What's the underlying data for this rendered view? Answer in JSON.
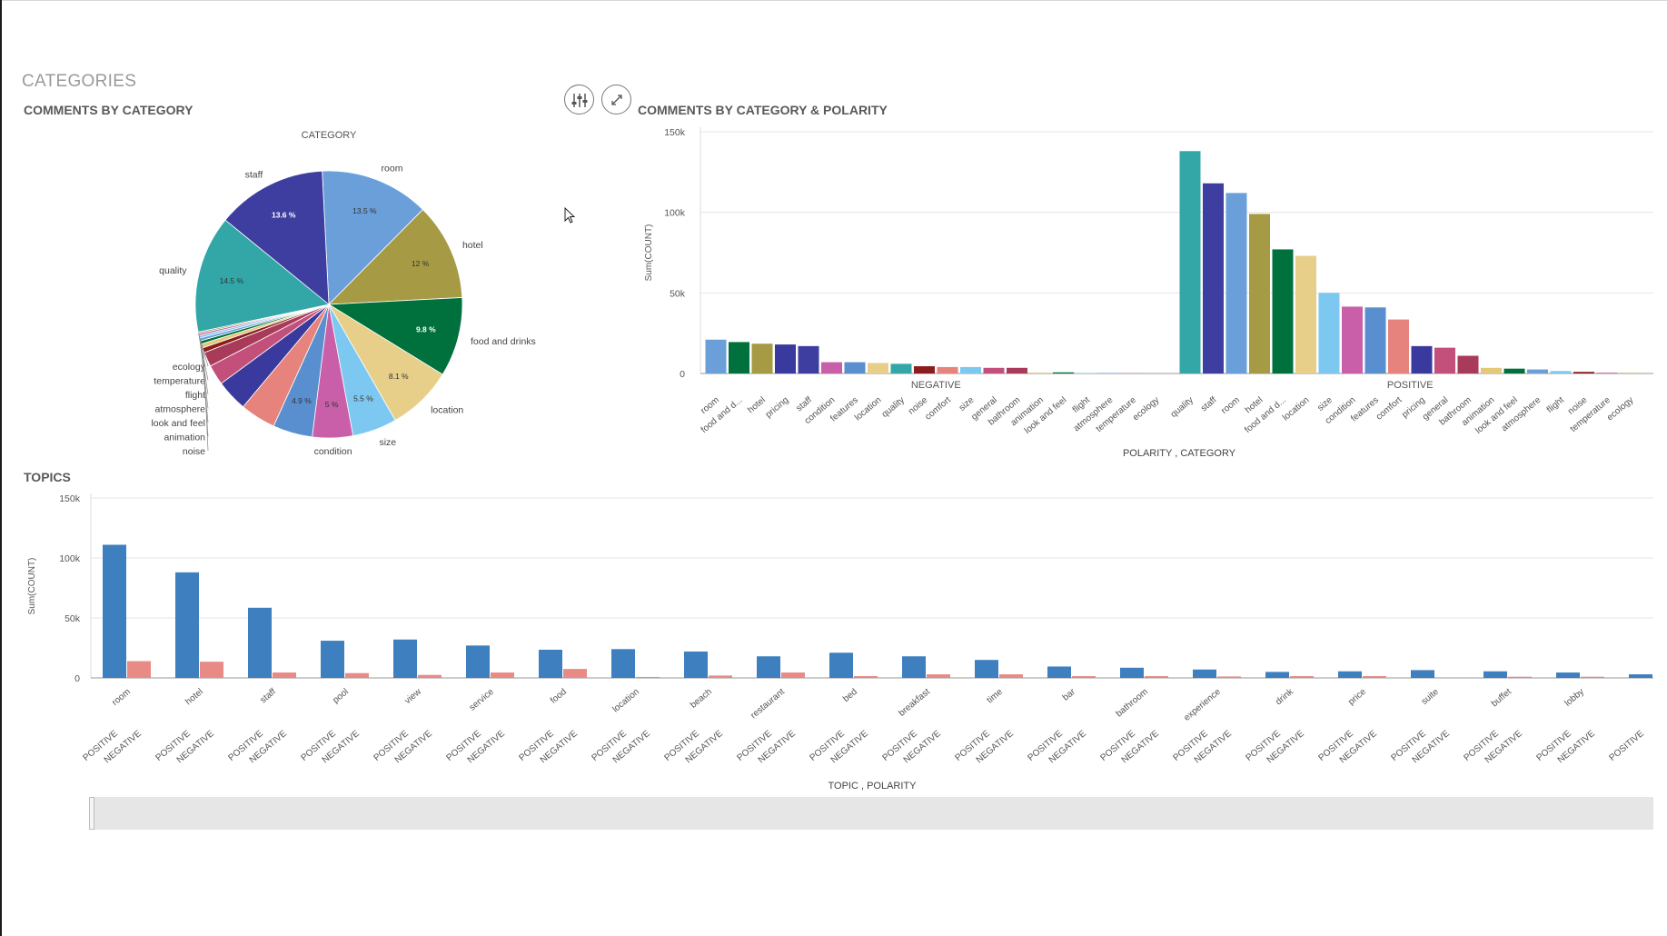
{
  "sheet_title": "CATEGORIES",
  "panels": {
    "pie_title": "COMMENTS BY CATEGORY",
    "bar_title": "COMMENTS BY CATEGORY & POLARITY",
    "topics_title": "TOPICS"
  },
  "toolbar": {
    "adjust_icon": "sliders-icon",
    "expand_icon": "expand-icon"
  },
  "colors": {
    "teal": "#33A7A7",
    "indigo": "#3E3EA0",
    "sky": "#6A9FD9",
    "olive": "#A69A45",
    "green": "#00703C",
    "sand": "#E7CF8A",
    "lightblue": "#7DC8F0",
    "pink": "#C95FA8",
    "steel": "#5A8FCF",
    "salmon": "#E6837D",
    "navy": "#3A3A9E",
    "rose": "#C2507A",
    "crimson": "#A83B5A",
    "khaki": "#E3C878",
    "darkred": "#8B1D1D",
    "topic_positive": "#3D7FBF",
    "topic_negative": "#E88A86"
  },
  "chart_data": [
    {
      "type": "pie",
      "title": "CATEGORY",
      "slices": [
        {
          "label": "room",
          "value": 13.5,
          "value_label": "13.5 %",
          "color": "#6A9FD9"
        },
        {
          "label": "hotel",
          "value": 12.0,
          "value_label": "12 %",
          "color": "#A69A45"
        },
        {
          "label": "food and drinks",
          "value": 9.8,
          "value_label": "9.8 %",
          "color": "#00703C"
        },
        {
          "label": "location",
          "value": 8.1,
          "value_label": "8.1 %",
          "color": "#E7CF8A"
        },
        {
          "label": "size",
          "value": 5.5,
          "value_label": "5.5 %",
          "color": "#7DC8F0"
        },
        {
          "label": "condition",
          "value": 5.0,
          "value_label": "5 %",
          "color": "#C95FA8"
        },
        {
          "label": "",
          "value": 4.9,
          "value_label": "4.9 %",
          "color": "#5A8FCF"
        },
        {
          "label": "",
          "value": 4.4,
          "value_label": "",
          "color": "#E6837D"
        },
        {
          "label": "",
          "value": 3.9,
          "value_label": "",
          "color": "#3A3A9E"
        },
        {
          "label": "",
          "value": 2.5,
          "value_label": "",
          "color": "#C2507A"
        },
        {
          "label": "",
          "value": 1.8,
          "value_label": "",
          "color": "#A83B5A"
        },
        {
          "label": "noise",
          "value": 0.6,
          "value_label": "",
          "color": "#8B1D1D"
        },
        {
          "label": "animation",
          "value": 0.5,
          "value_label": "",
          "color": "#E3C878"
        },
        {
          "label": "look and feel",
          "value": 0.4,
          "value_label": "",
          "color": "#00703C"
        },
        {
          "label": "atmosphere",
          "value": 0.35,
          "value_label": "",
          "color": "#6A9FD9"
        },
        {
          "label": "flight",
          "value": 0.3,
          "value_label": "",
          "color": "#7DC8F0"
        },
        {
          "label": "temperature",
          "value": 0.25,
          "value_label": "",
          "color": "#C95FA8"
        },
        {
          "label": "ecology",
          "value": 0.2,
          "value_label": "",
          "color": "#A69A45"
        },
        {
          "label": "quality",
          "value": 14.5,
          "value_label": "14.5 %",
          "color": "#33A7A7"
        },
        {
          "label": "staff",
          "value": 13.6,
          "value_label": "13.6 %",
          "color": "#3E3EA0"
        }
      ]
    },
    {
      "type": "bar",
      "title": "COMMENTS BY CATEGORY & POLARITY",
      "xlabel": "POLARITY , CATEGORY",
      "ylabel": "Sum(COUNT)",
      "ylim": [
        0,
        150000
      ],
      "yticks": [
        "0",
        "50k",
        "100k",
        "150k"
      ],
      "ytick_values": [
        0,
        50000,
        100000,
        150000
      ],
      "groups": [
        {
          "name": "NEGATIVE",
          "categories": [
            "room",
            "food and d...",
            "hotel",
            "pricing",
            "staff",
            "condition",
            "features",
            "location",
            "quality",
            "noise",
            "comfort",
            "size",
            "general",
            "bathroom",
            "animation",
            "look and feel",
            "flight",
            "atmosphere",
            "temperature",
            "ecology"
          ],
          "values": [
            21000,
            19500,
            18500,
            18000,
            17000,
            7000,
            7000,
            6500,
            6000,
            4500,
            4000,
            4000,
            3500,
            3500,
            500,
            700,
            300,
            300,
            200,
            100
          ],
          "colors": [
            "#6A9FD9",
            "#00703C",
            "#A69A45",
            "#3A3A9E",
            "#3E3EA0",
            "#C95FA8",
            "#5A8FCF",
            "#E7CF8A",
            "#33A7A7",
            "#8B1D1D",
            "#E6837D",
            "#7DC8F0",
            "#C2507A",
            "#A83B5A",
            "#E3C878",
            "#00703C",
            "#7DC8F0",
            "#6A9FD9",
            "#C95FA8",
            "#A69A45"
          ]
        },
        {
          "name": "POSITIVE",
          "categories": [
            "quality",
            "staff",
            "room",
            "hotel",
            "food and d...",
            "location",
            "size",
            "condition",
            "features",
            "comfort",
            "pricing",
            "general",
            "bathroom",
            "animation",
            "look and feel",
            "atmosphere",
            "flight",
            "noise",
            "temperature",
            "ecology"
          ],
          "values": [
            138000,
            118000,
            112000,
            99000,
            77000,
            73000,
            50000,
            41500,
            41000,
            33500,
            17000,
            16000,
            11000,
            3500,
            3000,
            2500,
            1500,
            1000,
            500,
            300
          ],
          "colors": [
            "#33A7A7",
            "#3E3EA0",
            "#6A9FD9",
            "#A69A45",
            "#00703C",
            "#E7CF8A",
            "#7DC8F0",
            "#C95FA8",
            "#5A8FCF",
            "#E6837D",
            "#3A3A9E",
            "#C2507A",
            "#A83B5A",
            "#E3C878",
            "#00703C",
            "#6A9FD9",
            "#7DC8F0",
            "#8B1D1D",
            "#C95FA8",
            "#A69A45"
          ]
        }
      ]
    },
    {
      "type": "bar",
      "title": "TOPICS",
      "xlabel": "TOPIC , POLARITY",
      "ylabel": "Sum(COUNT)",
      "ylim": [
        0,
        150000
      ],
      "yticks": [
        "0",
        "50k",
        "100k",
        "150k"
      ],
      "ytick_values": [
        0,
        50000,
        100000,
        150000
      ],
      "polarities": [
        "POSITIVE",
        "NEGATIVE"
      ],
      "topics": [
        "room",
        "hotel",
        "staff",
        "pool",
        "view",
        "service",
        "food",
        "location",
        "beach",
        "restaurant",
        "bed",
        "breakfast",
        "time",
        "bar",
        "bathroom",
        "experience",
        "drink",
        "price",
        "suite",
        "buffet",
        "lobby"
      ],
      "series": [
        {
          "name": "POSITIVE",
          "values": [
            111000,
            88000,
            58500,
            31000,
            32000,
            27000,
            23500,
            24000,
            22000,
            18000,
            21000,
            18000,
            15000,
            9500,
            8500,
            7000,
            5000,
            5500,
            6500,
            5500,
            4500,
            3000
          ]
        },
        {
          "name": "NEGATIVE",
          "values": [
            14000,
            13500,
            4500,
            4000,
            2500,
            4500,
            7500,
            800,
            2000,
            4500,
            1500,
            3000,
            3000,
            1500,
            1500,
            1200,
            1500,
            1500,
            0,
            1000,
            1000
          ]
        }
      ],
      "extra_last_label": "POSITIVE"
    }
  ]
}
